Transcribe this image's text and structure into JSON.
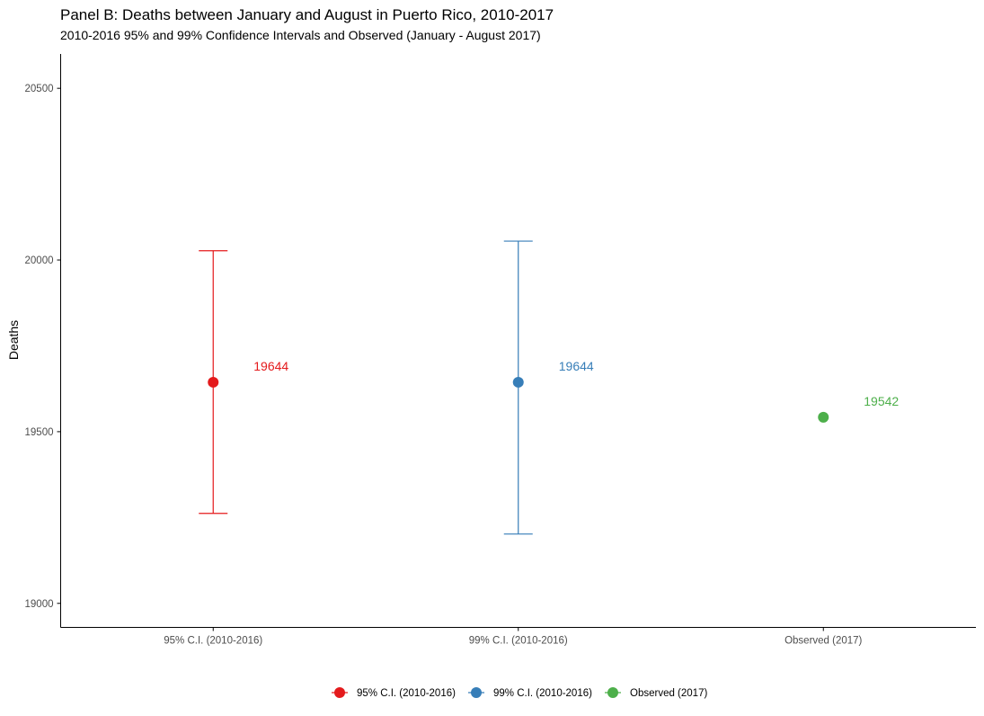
{
  "chart_data": {
    "type": "scatter",
    "title": "Panel B: Deaths between January and August in Puerto Rico, 2010-2017",
    "subtitle": "2010-2016 95% and 99% Confidence Intervals and Observed (January - August 2017)",
    "xlabel": "",
    "ylabel": "Deaths",
    "ylim": [
      18930,
      20600
    ],
    "y_ticks": [
      19000,
      19500,
      20000,
      20500
    ],
    "grid": false,
    "legend_position": "bottom",
    "categories": [
      "95% C.I. (2010-2016)",
      "99% C.I. (2010-2016)",
      "Observed (2017)"
    ],
    "series": [
      {
        "name": "95% C.I. (2010-2016)",
        "color": "#e41a1c",
        "value": 19644,
        "lower": 19262,
        "upper": 20027,
        "label": "19644"
      },
      {
        "name": "99% C.I. (2010-2016)",
        "color": "#377eb8",
        "value": 19644,
        "lower": 19202,
        "upper": 20055,
        "label": "19644"
      },
      {
        "name": "Observed (2017)",
        "color": "#4daf4a",
        "value": 19542,
        "lower": null,
        "upper": null,
        "label": "19542"
      }
    ]
  }
}
